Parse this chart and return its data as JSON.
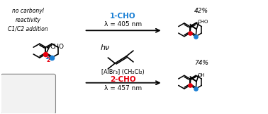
{
  "background_color": "#ffffff",
  "fig_width": 3.78,
  "fig_height": 1.62,
  "dpi": 100,
  "top_label": "1-CHO",
  "top_label_color": "#1a7fd4",
  "top_wavelength": "λ = 405 nm",
  "bottom_label": "2-CHO",
  "bottom_label_color": "#e8000e",
  "bottom_wavelength": "λ = 457 nm",
  "hv_text": "hν",
  "reagent_text": "[AlBr₃] (CH₂Cl₂)",
  "top_yield": "42%",
  "bottom_yield": "74%",
  "box_text": "no carbonyl\nreactivity\nC1/C2 addition",
  "blue_color": "#1a7fd4",
  "red_color": "#e8000e",
  "black": "#000000"
}
